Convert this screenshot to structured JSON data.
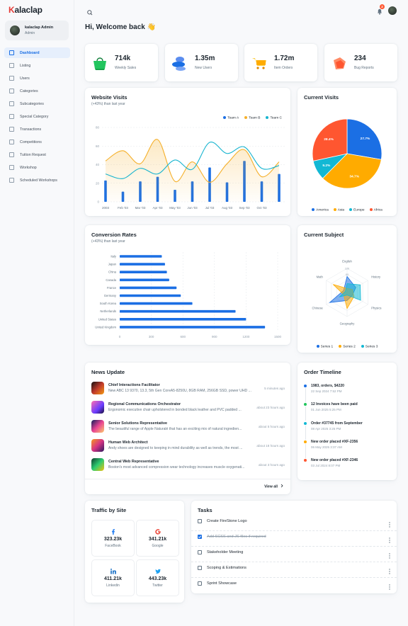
{
  "brand": "Kalaclap",
  "profile": {
    "name": "kalaclap Admin",
    "role": "Admin"
  },
  "nav": {
    "active": 0,
    "items": [
      "Dashboard",
      "Listing",
      "Users",
      "Categories",
      "Subcategories",
      "Special Category",
      "Transactions",
      "Competitions",
      "Tuition Request",
      "Workshop",
      "Scheduled Workshops"
    ]
  },
  "notifications": 2,
  "greeting": "Hi, Welcome back 👋",
  "stats": [
    {
      "value": "714k",
      "label": "Weekly Sales"
    },
    {
      "value": "1.35m",
      "label": "New Users"
    },
    {
      "value": "1.72m",
      "label": "Item Orders"
    },
    {
      "value": "234",
      "label": "Bug Reports"
    }
  ],
  "chart_data": [
    {
      "type": "combo",
      "title": "Website Visits",
      "subtitle": "(+43%) than last year",
      "categories": [
        "2003",
        "Feb '03",
        "Mar '03",
        "Apr '03",
        "May '03",
        "Jun '03",
        "Jul '03",
        "Aug '03",
        "Sep '03",
        "Oct '03",
        null
      ],
      "series": [
        {
          "name": "Team A",
          "type": "bar",
          "color": "#1b6fe4",
          "values": [
            23,
            11,
            22,
            27,
            13,
            22,
            37,
            21,
            44,
            22,
            30
          ]
        },
        {
          "name": "Team B",
          "type": "area",
          "color": "#f5b02b",
          "values": [
            44,
            55,
            41,
            67,
            22,
            43,
            21,
            41,
            56,
            27,
            43
          ]
        },
        {
          "name": "Team C",
          "type": "line",
          "color": "#16b4cf",
          "values": [
            30,
            25,
            36,
            30,
            45,
            35,
            64,
            52,
            59,
            36,
            39
          ]
        }
      ],
      "ylim": [
        0,
        80
      ],
      "yticks": [
        0,
        20,
        40,
        60,
        80
      ],
      "grid": true,
      "legend": "top-right"
    },
    {
      "type": "pie",
      "title": "Current Visits",
      "categories": [
        "America",
        "Asia",
        "Europe",
        "Africa"
      ],
      "values": [
        27.7,
        34.7,
        9.2,
        28.4
      ],
      "value_labels": [
        "27.7%",
        "34.7%",
        "9.2%",
        "28.4%"
      ],
      "colors": [
        "#1b6fe4",
        "#ffab00",
        "#12b8d4",
        "#ff5630"
      ],
      "legend": "bottom"
    },
    {
      "type": "bar",
      "orientation": "horizontal",
      "title": "Conversion Rates",
      "subtitle": "(+43%) than last year",
      "categories": [
        "Italy",
        "Japan",
        "China",
        "Canada",
        "France",
        "Germany",
        "South Korea",
        "Netherlands",
        "United States",
        "United Kingdom"
      ],
      "values": [
        400,
        430,
        448,
        470,
        540,
        580,
        690,
        1100,
        1200,
        1380
      ],
      "color": "#1b6fe4",
      "xlim": [
        0,
        1500
      ],
      "xticks": [
        0,
        300,
        600,
        900,
        1200,
        1500
      ],
      "grid": true
    },
    {
      "type": "radar",
      "title": "Current Subject",
      "categories": [
        "English",
        "History",
        "Physics",
        "Geography",
        "Chinese",
        "Math"
      ],
      "series": [
        {
          "name": "Series 1",
          "color": "#1b6fe4",
          "values": [
            80,
            50,
            30,
            40,
            100,
            20
          ]
        },
        {
          "name": "Series 2",
          "color": "#ffab00",
          "values": [
            20,
            30,
            40,
            80,
            20,
            80
          ]
        },
        {
          "name": "Series 3",
          "color": "#12b8d4",
          "values": [
            44,
            76,
            78,
            13,
            43,
            10
          ]
        }
      ],
      "rlim": [
        0,
        120
      ],
      "rticks": [
        90,
        120
      ],
      "legend": "bottom"
    }
  ],
  "news": {
    "title": "News Update",
    "more": "View all",
    "items": [
      {
        "title": "Chief Interactions Facilitator",
        "text": "New ABC 13 9370, 13.3, 5th Gen CoreA5-8250U, 8GB RAM, 256GB SSD, power UHD ...",
        "time": "5 minutes ago"
      },
      {
        "title": "Regional Communications Orchestrator",
        "text": "Ergonomic executive chair upholstered in bonded black leather and PVC padded ...",
        "time": "about 23 hours ago"
      },
      {
        "title": "Senior Solutions Representative",
        "text": "The beautiful range of Apple Naturalé that has an exciting mix of natural ingredien...",
        "time": "about 5 hours ago"
      },
      {
        "title": "Human Web Architect",
        "text": "Andy shoes are designed to keeping in mind durability as well as trends, the most ...",
        "time": "about 18 hours ago"
      },
      {
        "title": "Central Web Representative",
        "text": "Boston's most advanced compression wear technology increases muscle oxygenati...",
        "time": "about 3 hours ago"
      }
    ]
  },
  "timeline": {
    "title": "Order Timeline",
    "events": [
      {
        "title": "1983, orders, $4220",
        "time": "22 Sep 2024 7:52 PM",
        "color": "#1b6fe4"
      },
      {
        "title": "12 Invoices have been paid",
        "time": "01 Jun 2025 5:25 PM",
        "color": "#22c55e"
      },
      {
        "title": "Order #37745 from September",
        "time": "08 Apr 2025 3:25 PM",
        "color": "#12b8d4"
      },
      {
        "title": "New order placed #XF-2356",
        "time": "06 May 2025 3:37 AM",
        "color": "#ffab00"
      },
      {
        "title": "New order placed #XF-2346",
        "time": "03 Jul 2024 8:07 PM",
        "color": "#ff5630"
      }
    ]
  },
  "traffic": {
    "title": "Traffic by Site",
    "sites": [
      {
        "value": "323.23k",
        "name": "FaceBook"
      },
      {
        "value": "341.21k",
        "name": "Google"
      },
      {
        "value": "411.21k",
        "name": "Linkedin"
      },
      {
        "value": "443.23k",
        "name": "Twitter"
      }
    ]
  },
  "tasks": {
    "title": "Tasks",
    "items": [
      {
        "label": "Create FireStone Logo",
        "done": false
      },
      {
        "label": "Add SCSS and JS files if required",
        "done": true
      },
      {
        "label": "Stakeholder Meeting",
        "done": false
      },
      {
        "label": "Scoping & Estimations",
        "done": false
      },
      {
        "label": "Sprint Showcase",
        "done": false
      }
    ]
  }
}
